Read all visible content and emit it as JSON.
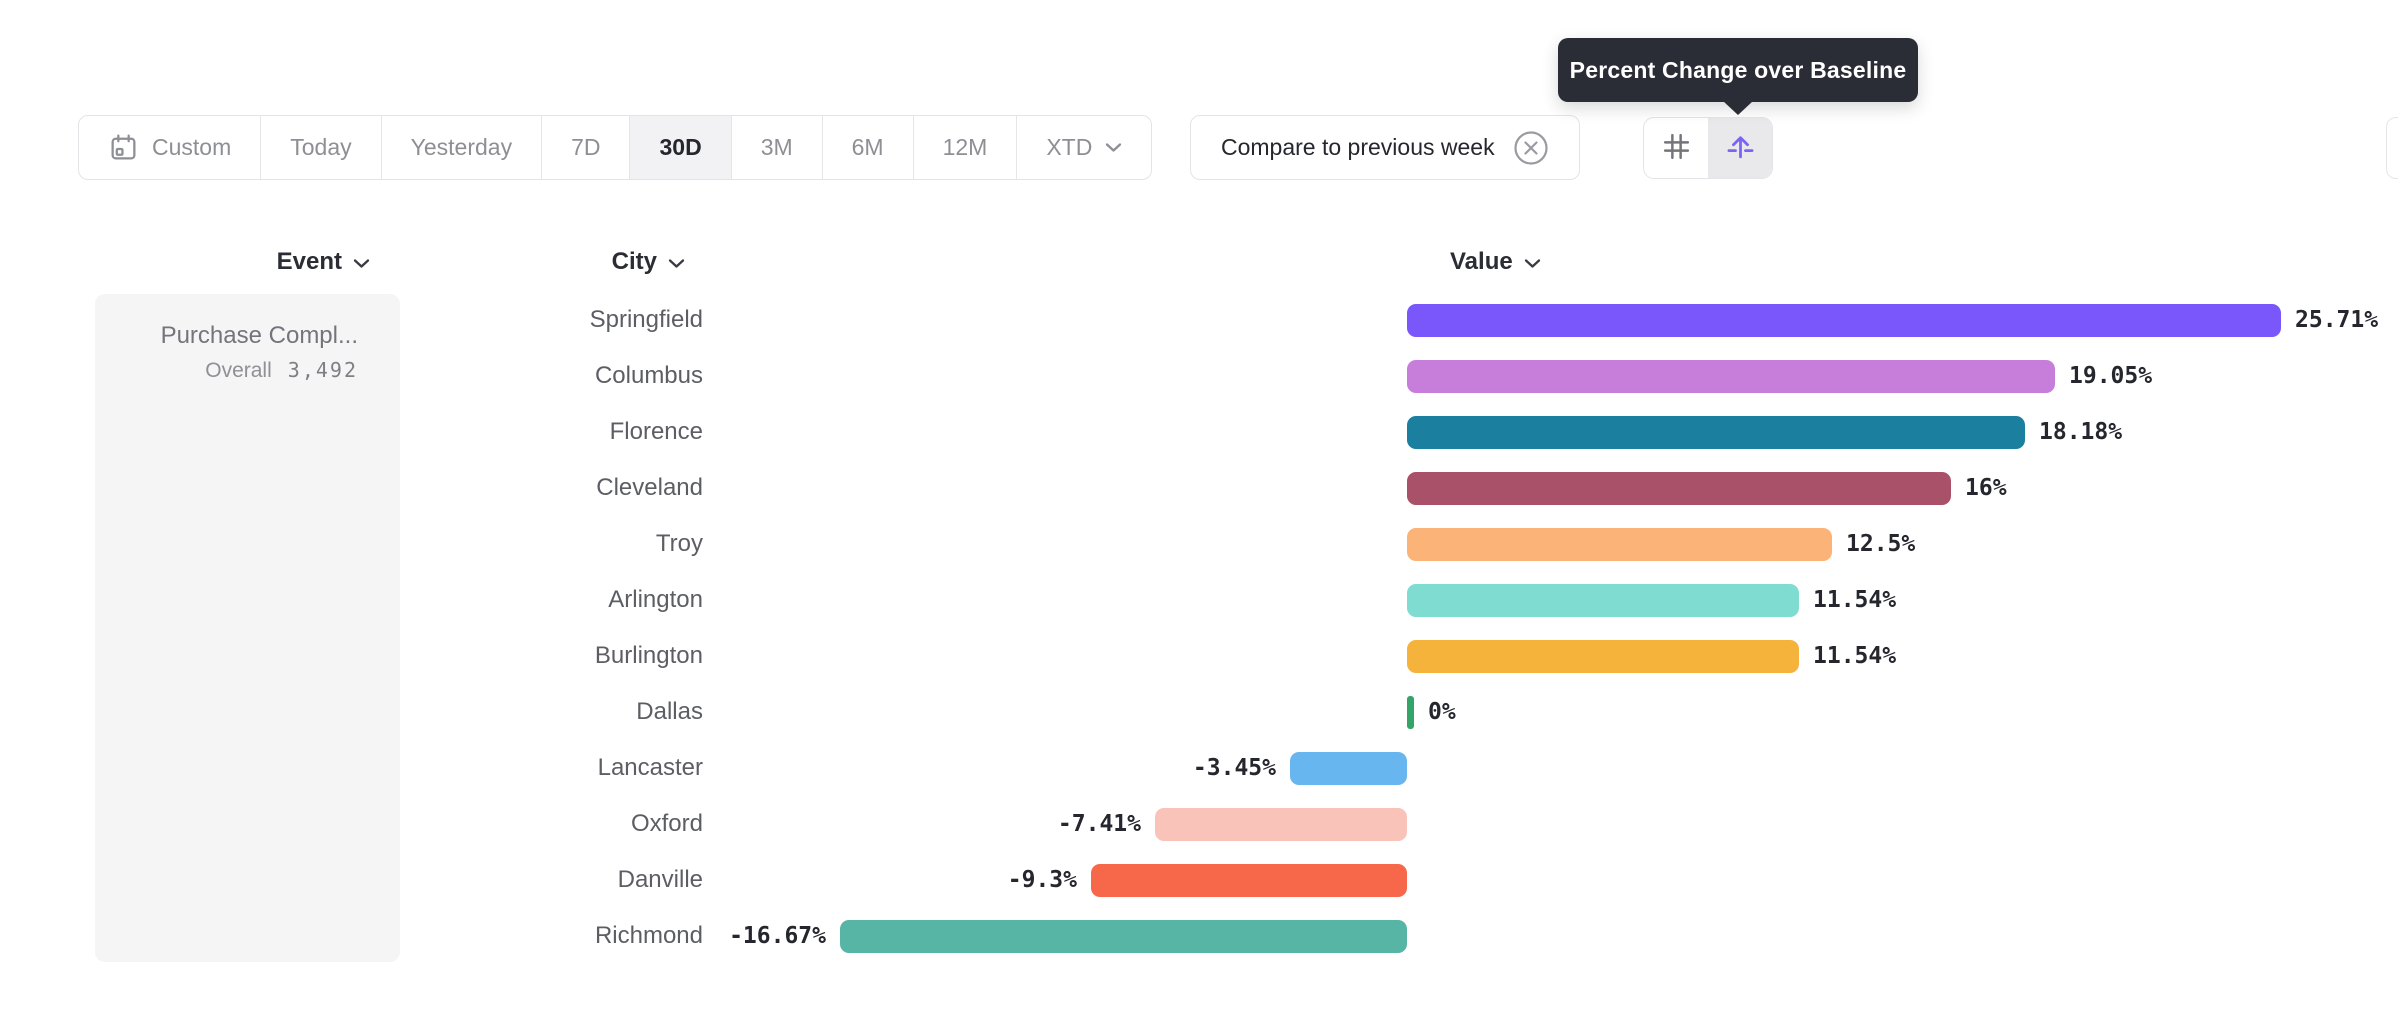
{
  "tooltip": {
    "text": "Percent Change over Baseline"
  },
  "toolbar": {
    "date_ranges": [
      {
        "label": "Custom",
        "icon": "calendar",
        "selected": false
      },
      {
        "label": "Today",
        "selected": false
      },
      {
        "label": "Yesterday",
        "selected": false
      },
      {
        "label": "7D",
        "selected": false
      },
      {
        "label": "30D",
        "selected": true
      },
      {
        "label": "3M",
        "selected": false
      },
      {
        "label": "6M",
        "selected": false
      },
      {
        "label": "12M",
        "selected": false
      },
      {
        "label": "XTD",
        "icon": "chevron",
        "selected": false
      }
    ],
    "compare_label": "Compare to previous week"
  },
  "columns": {
    "event": "Event",
    "city": "City",
    "value": "Value"
  },
  "event_panel": {
    "title": "Purchase Compl...",
    "overall_label": "Overall",
    "overall_value": "3,492"
  },
  "colors": {
    "accent": "#7c63f3",
    "tooltip_bg": "#2b2d36",
    "panel_bg": "#f5f5f6",
    "muted_text": "#8e8f95",
    "dark_text": "#26272e",
    "zero_tick": "#34a469"
  },
  "chart_data": {
    "type": "bar",
    "orientation": "horizontal",
    "title": "Percent Change over Baseline",
    "xlabel": "Value",
    "ylabel": "City",
    "value_format": "percent",
    "categories": [
      "Springfield",
      "Columbus",
      "Florence",
      "Cleveland",
      "Troy",
      "Arlington",
      "Burlington",
      "Dallas",
      "Lancaster",
      "Oxford",
      "Danville",
      "Richmond"
    ],
    "values": [
      25.71,
      19.05,
      18.18,
      16,
      12.5,
      11.54,
      11.54,
      0,
      -3.45,
      -7.41,
      -9.3,
      -16.67
    ],
    "labels": [
      "25.71%",
      "19.05%",
      "18.18%",
      "16%",
      "12.5%",
      "11.54%",
      "11.54%",
      "0%",
      "-3.45%",
      "-7.41%",
      "-9.3%",
      "-16.67%"
    ],
    "colors": [
      "#7957fb",
      "#c77edb",
      "#1b80a0",
      "#a95168",
      "#fcb377",
      "#7fdcd1",
      "#f5b33c",
      "#34a469",
      "#68b6ef",
      "#f9c3ba",
      "#f7684a",
      "#57b5a6"
    ]
  }
}
